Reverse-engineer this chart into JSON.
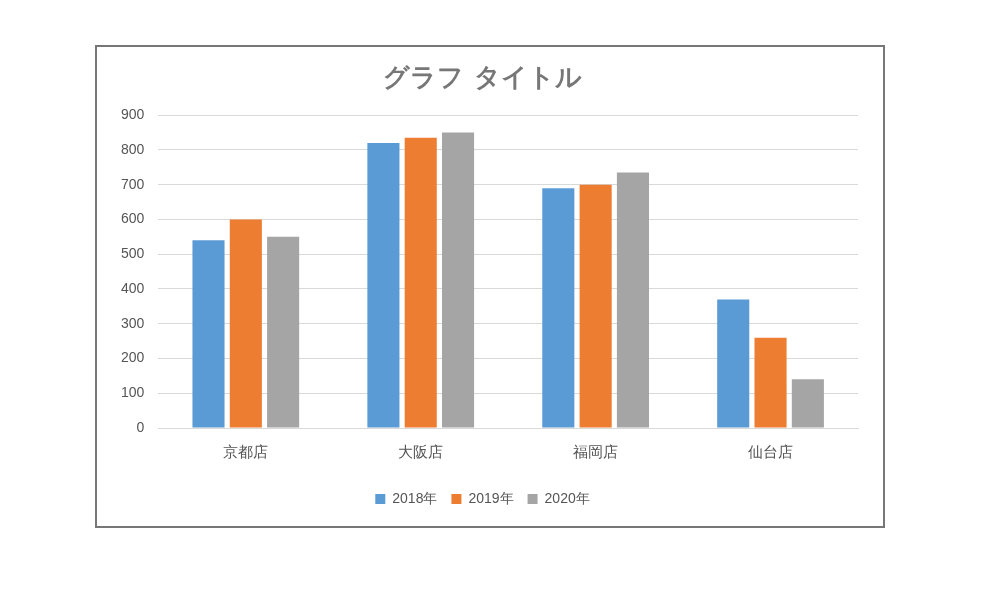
{
  "chart_data": {
    "type": "bar",
    "title": "グラフ タイトル",
    "categories": [
      "京都店",
      "大阪店",
      "福岡店",
      "仙台店"
    ],
    "series": [
      {
        "name": "2018年",
        "color": "#5b9bd5",
        "values": [
          540,
          820,
          690,
          370
        ]
      },
      {
        "name": "2019年",
        "color": "#ed7d31",
        "values": [
          600,
          835,
          700,
          260
        ]
      },
      {
        "name": "2020年",
        "color": "#a5a5a5",
        "values": [
          550,
          850,
          735,
          140
        ]
      }
    ],
    "ylim": [
      0,
      900
    ],
    "yticks": [
      0,
      100,
      200,
      300,
      400,
      500,
      600,
      700,
      800,
      900
    ],
    "grid": "y",
    "legend": "bottom"
  }
}
